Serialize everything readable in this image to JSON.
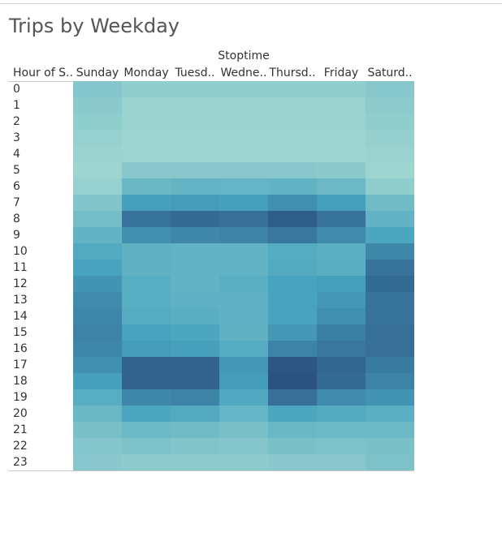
{
  "chart_data": {
    "type": "heatmap",
    "title": "Trips by Weekday",
    "column_group_label": "Stoptime",
    "row_header": "Hour of S..",
    "columns": [
      "Sunday",
      "Monday",
      "Tuesd..",
      "Wedne..",
      "Thursd..",
      "Friday",
      "Saturd.."
    ],
    "rows": [
      "0",
      "1",
      "2",
      "3",
      "4",
      "5",
      "6",
      "7",
      "8",
      "9",
      "10",
      "11",
      "12",
      "13",
      "14",
      "15",
      "16",
      "17",
      "18",
      "19",
      "20",
      "21",
      "22",
      "23"
    ],
    "values": [
      [
        28,
        22,
        22,
        22,
        22,
        22,
        27
      ],
      [
        25,
        17,
        17,
        17,
        17,
        17,
        24
      ],
      [
        22,
        16,
        16,
        16,
        16,
        16,
        22
      ],
      [
        18,
        15,
        15,
        15,
        15,
        15,
        19
      ],
      [
        16,
        15,
        15,
        15,
        15,
        15,
        17
      ],
      [
        15,
        26,
        26,
        26,
        26,
        25,
        15
      ],
      [
        18,
        42,
        45,
        44,
        46,
        41,
        22
      ],
      [
        30,
        62,
        64,
        62,
        70,
        62,
        38
      ],
      [
        36,
        84,
        88,
        86,
        94,
        84,
        46
      ],
      [
        46,
        70,
        74,
        76,
        82,
        72,
        58
      ],
      [
        54,
        47,
        46,
        46,
        53,
        50,
        74
      ],
      [
        60,
        47,
        46,
        46,
        54,
        51,
        84
      ],
      [
        68,
        52,
        46,
        50,
        60,
        62,
        88
      ],
      [
        72,
        52,
        48,
        48,
        60,
        66,
        84
      ],
      [
        74,
        53,
        51,
        48,
        60,
        70,
        84
      ],
      [
        76,
        60,
        58,
        47,
        66,
        78,
        86
      ],
      [
        74,
        64,
        62,
        53,
        76,
        82,
        86
      ],
      [
        70,
        92,
        92,
        66,
        98,
        90,
        80
      ],
      [
        62,
        92,
        92,
        64,
        100,
        88,
        76
      ],
      [
        52,
        74,
        76,
        56,
        86,
        72,
        68
      ],
      [
        42,
        58,
        54,
        44,
        58,
        54,
        50
      ],
      [
        34,
        40,
        38,
        34,
        42,
        40,
        40
      ],
      [
        28,
        32,
        30,
        28,
        34,
        32,
        34
      ],
      [
        26,
        24,
        24,
        24,
        26,
        26,
        32
      ]
    ],
    "color_low": "#b9e4d6",
    "color_high": "#2c5282"
  }
}
